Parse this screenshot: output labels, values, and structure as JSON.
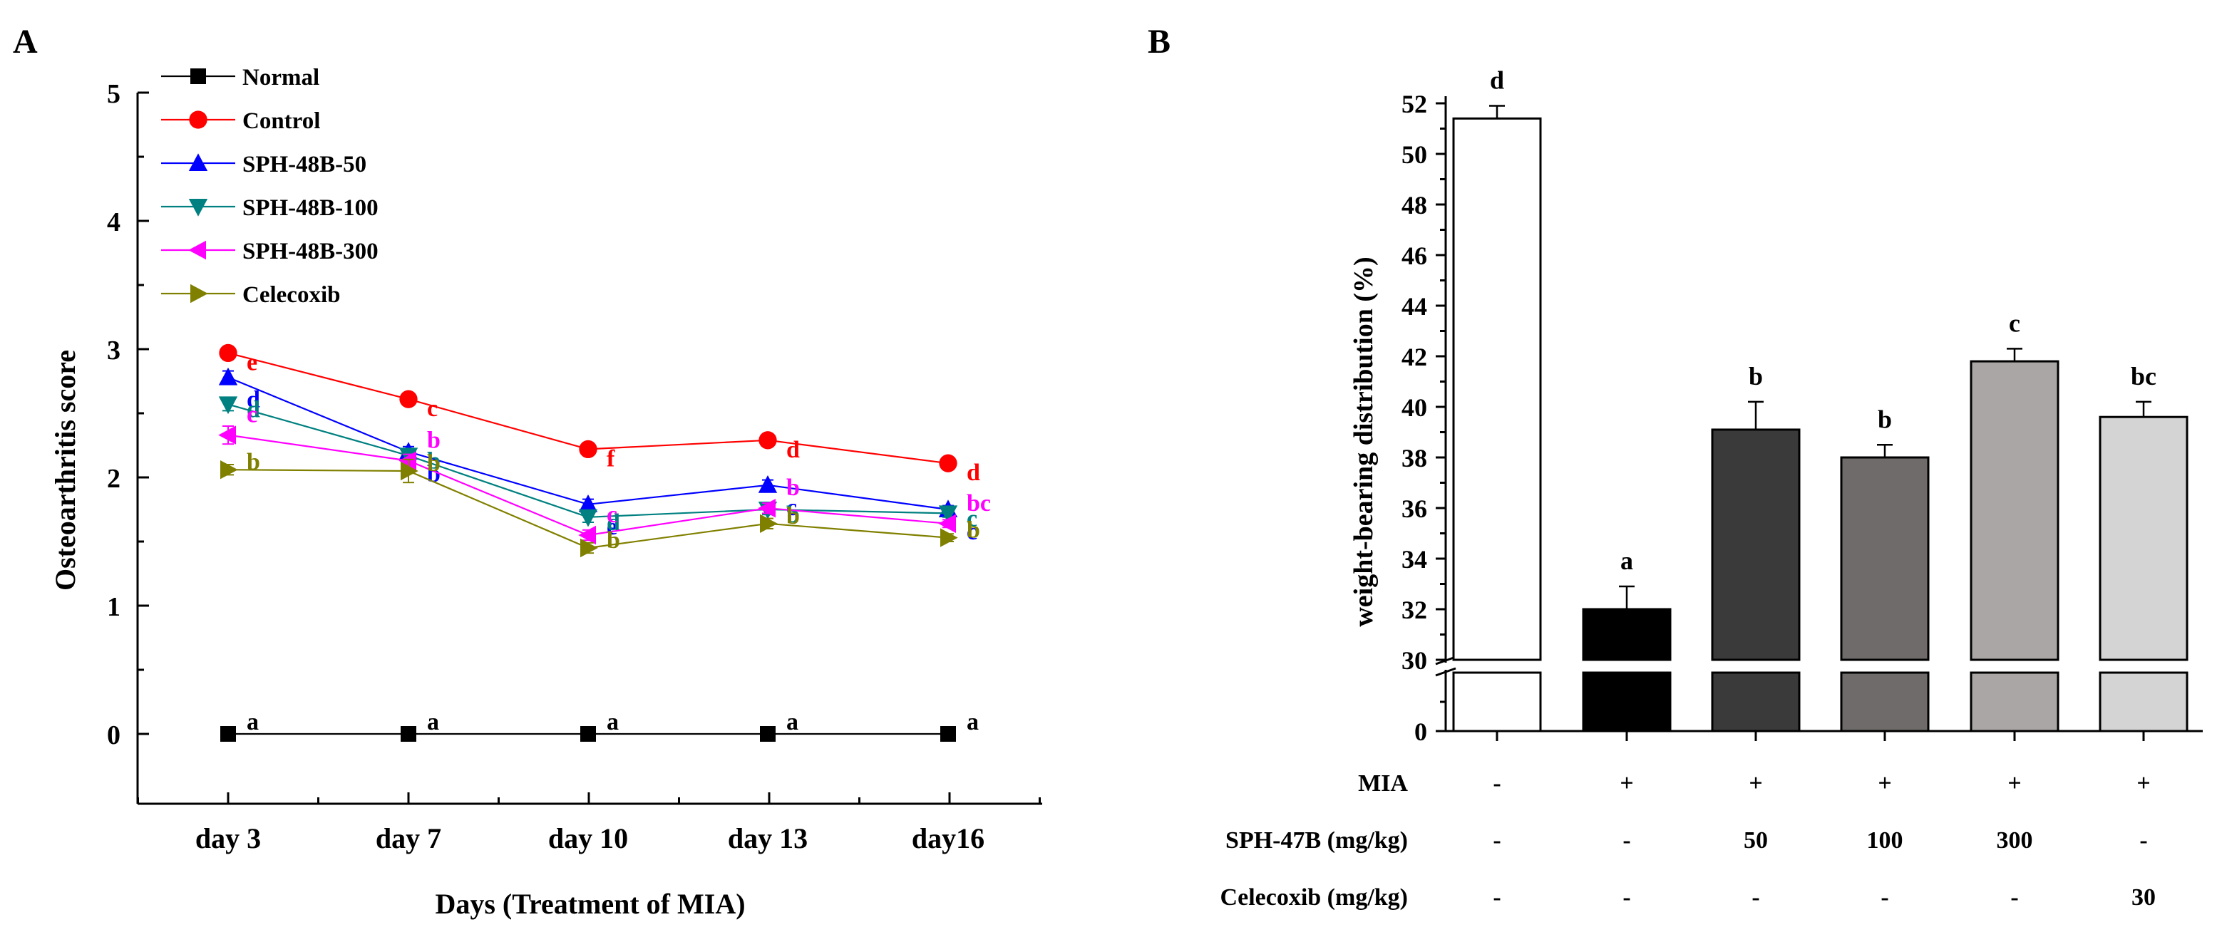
{
  "chart_data": [
    {
      "panel_label": "A",
      "type": "line",
      "categories": [
        "day 3",
        "day 7",
        "day 10",
        "day 13",
        "day16"
      ],
      "xlabel": "Days (Treatment of MIA)",
      "ylabel": "Osteoarthritis score",
      "ylim": [
        0,
        5
      ],
      "yticks": [
        "0",
        "1",
        "2",
        "3",
        "4",
        "5"
      ],
      "legend_position": "top-left",
      "series": [
        {
          "name": "Normal",
          "color": "#000000",
          "marker": "square",
          "values": [
            0,
            0,
            0,
            0,
            0
          ],
          "errors": [
            0,
            0,
            0,
            0,
            0
          ],
          "letters": [
            "a",
            "a",
            "a",
            "a",
            "a"
          ]
        },
        {
          "name": "Control",
          "color": "#ff0000",
          "marker": "circle",
          "values": [
            2.97,
            2.61,
            2.22,
            2.29,
            2.11
          ],
          "errors": [
            0.03,
            0.03,
            0.03,
            0.03,
            0.03
          ],
          "letters": [
            "e",
            "c",
            "f",
            "d",
            "d"
          ]
        },
        {
          "name": "SPH-48B-50",
          "color": "#0000ff",
          "marker": "triangle-up",
          "values": [
            2.78,
            2.2,
            1.79,
            1.94,
            1.75
          ],
          "errors": [
            0.05,
            0.04,
            0.04,
            0.04,
            0.03
          ],
          "letters": [
            "d",
            "b",
            "e",
            "c",
            "c"
          ]
        },
        {
          "name": "SPH-48B-100",
          "color": "#008080",
          "marker": "triangle-down",
          "values": [
            2.57,
            2.17,
            1.69,
            1.75,
            1.72
          ],
          "errors": [
            0.05,
            0.04,
            0.04,
            0.04,
            0.03
          ],
          "letters": [
            "d",
            "b",
            "d",
            "b",
            "c"
          ]
        },
        {
          "name": "SPH-48B-300",
          "color": "#ff00ff",
          "marker": "triangle-left",
          "values": [
            2.33,
            2.13,
            1.55,
            1.76,
            1.64
          ],
          "errors": [
            0.07,
            0.05,
            0.04,
            0.04,
            0.03
          ],
          "letters": [
            "c",
            "b",
            "c",
            "b",
            "bc"
          ]
        },
        {
          "name": "Celecoxib",
          "color": "#808000",
          "marker": "triangle-right",
          "values": [
            2.06,
            2.05,
            1.45,
            1.64,
            1.53
          ],
          "errors": [
            0.04,
            0.09,
            0.04,
            0.04,
            0.03
          ],
          "letters": [
            "b",
            "b",
            "b",
            "b",
            "b"
          ]
        }
      ]
    },
    {
      "panel_label": "B",
      "type": "bar",
      "ylabel": "weight-bearing distribution (%)",
      "ylim": [
        30,
        52
      ],
      "yticks": [
        "30",
        "32",
        "34",
        "36",
        "38",
        "40",
        "42",
        "44",
        "46",
        "48",
        "50",
        "52"
      ],
      "broken_axis_lower_tick": "0",
      "bars": [
        {
          "value": 51.4,
          "error": 0.5,
          "letter": "d",
          "color": "#ffffff"
        },
        {
          "value": 32.0,
          "error": 0.9,
          "letter": "a",
          "color": "#000000"
        },
        {
          "value": 39.1,
          "error": 1.1,
          "letter": "b",
          "color": "#3a3a3a"
        },
        {
          "value": 38.0,
          "error": 0.5,
          "letter": "b",
          "color": "#6e6b6a"
        },
        {
          "value": 41.8,
          "error": 0.5,
          "letter": "c",
          "color": "#aaa6a5"
        },
        {
          "value": 39.6,
          "error": 0.6,
          "letter": "bc",
          "color": "#d4d4d4"
        }
      ],
      "table": [
        {
          "label": "MIA",
          "cells": [
            "-",
            "+",
            "+",
            "+",
            "+",
            "+"
          ]
        },
        {
          "label": "SPH-47B  (mg/kg)",
          "cells": [
            "-",
            "-",
            "50",
            "100",
            "300",
            "-"
          ]
        },
        {
          "label": "Celecoxib  (mg/kg)",
          "cells": [
            "-",
            "-",
            "-",
            "-",
            "-",
            "30"
          ]
        }
      ]
    }
  ]
}
